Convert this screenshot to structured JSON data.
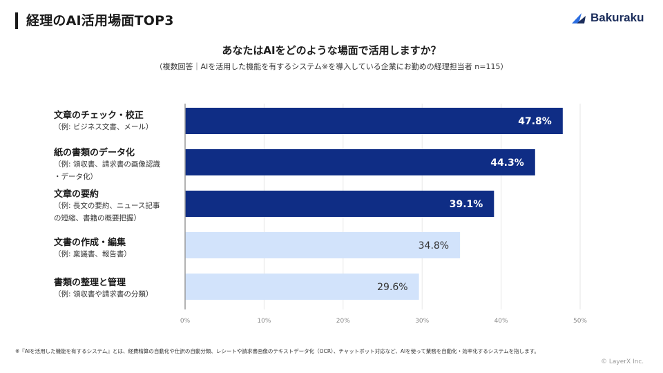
{
  "page_title": "経理のAI活用場面TOP3",
  "logo_text": "Bakuraku",
  "copyright": "© LayerX Inc.",
  "footnote": "※『AIを活用した機能を有するシステム』とは、経費精算の自動化や仕訳の自動分類、レシートや請求書画像のテキストデータ化（OCR）、チャットボット対応など、AIを使って業務を自動化・効率化するシステムを指します。",
  "colors": {
    "dark_bar": "#0f2d85",
    "light_bar": "#d2e3fb",
    "grid": "#e6e6e6",
    "axis": "#999999"
  },
  "categories_detail": [
    {
      "title": "文章のチェック・校正",
      "sub_lines": [
        "（例: ビジネス文書、メール）"
      ]
    },
    {
      "title": "紙の書類のデータ化",
      "sub_lines": [
        "（例: 領収書、請求書の画像認識",
        "・データ化）"
      ]
    },
    {
      "title": "文章の要約",
      "sub_lines": [
        "（例: 長文の要約、ニュース記事",
        "の短縮、書籍の概要把握）"
      ]
    },
    {
      "title": "文書の作成・編集",
      "sub_lines": [
        "（例: 稟議書、報告書）"
      ]
    },
    {
      "title": "書類の整理と管理",
      "sub_lines": [
        "（例: 領収書や請求書の分類）"
      ]
    }
  ],
  "chart_data": {
    "type": "bar",
    "orientation": "horizontal",
    "title": "あなたはAIをどのような場面で活用しますか？",
    "subtitle": "（複数回答｜AIを活用した機能を有するシステム※を導入している企業にお勤めの経理担当者 n=115）",
    "categories": [
      "文章のチェック・校正",
      "紙の書類のデータ化",
      "文章の要約",
      "文書の作成・編集",
      "書類の整理と管理"
    ],
    "values": [
      47.8,
      44.3,
      39.1,
      34.8,
      29.6
    ],
    "value_labels": [
      "47.8%",
      "44.3%",
      "39.1%",
      "34.8%",
      "29.6%"
    ],
    "highlight": [
      true,
      true,
      true,
      false,
      false
    ],
    "xlim": [
      0,
      50
    ],
    "ticks": [
      0,
      10,
      20,
      30,
      40,
      50
    ],
    "tick_labels": [
      "0%",
      "10%",
      "20%",
      "30%",
      "40%",
      "50%"
    ]
  }
}
